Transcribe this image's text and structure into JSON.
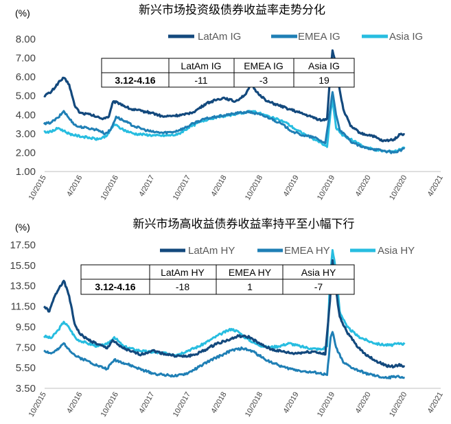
{
  "colors": {
    "latam": "#13497d",
    "emea": "#1f7fb5",
    "asia": "#27bde0",
    "axis": "#bfbfbf",
    "table_border": "#000000"
  },
  "chart_data": [
    {
      "type": "line",
      "title": "新兴市场投资级债券收益率走势分化",
      "unit": "(%)",
      "x_ticks": [
        "10/2015",
        "4/2016",
        "10/2016",
        "4/2017",
        "10/2017",
        "4/2018",
        "10/2018",
        "4/2019",
        "10/2019",
        "4/2020",
        "10/2020",
        "4/2021"
      ],
      "y_ticks": [
        "1.00",
        "2.00",
        "3.00",
        "4.00",
        "5.00",
        "6.00",
        "7.00",
        "8.00"
      ],
      "ylim": [
        1,
        8
      ],
      "legend_position": "top-right",
      "series": [
        {
          "name": "LatAm IG",
          "color_key": "latam",
          "points": [
            [
              0,
              5.0
            ],
            [
              0.2,
              5.2
            ],
            [
              0.4,
              5.7
            ],
            [
              0.55,
              5.95
            ],
            [
              0.7,
              5.6
            ],
            [
              0.85,
              4.5
            ],
            [
              1.0,
              4.1
            ],
            [
              1.3,
              4.0
            ],
            [
              1.6,
              3.8
            ],
            [
              1.8,
              3.9
            ],
            [
              1.92,
              4.7
            ],
            [
              2.1,
              4.6
            ],
            [
              2.4,
              4.3
            ],
            [
              2.7,
              4.2
            ],
            [
              3.0,
              4.1
            ],
            [
              3.3,
              3.9
            ],
            [
              3.6,
              3.95
            ],
            [
              3.9,
              4.0
            ],
            [
              4.2,
              4.2
            ],
            [
              4.5,
              4.6
            ],
            [
              4.8,
              4.8
            ],
            [
              5.0,
              4.9
            ],
            [
              5.3,
              4.7
            ],
            [
              5.6,
              5.1
            ],
            [
              5.75,
              5.6
            ],
            [
              5.9,
              5.2
            ],
            [
              6.2,
              4.7
            ],
            [
              6.5,
              4.5
            ],
            [
              6.8,
              4.3
            ],
            [
              7.1,
              4.1
            ],
            [
              7.4,
              3.9
            ],
            [
              7.7,
              3.7
            ],
            [
              7.85,
              3.8
            ],
            [
              7.95,
              6.5
            ],
            [
              8.0,
              7.4
            ],
            [
              8.1,
              6.6
            ],
            [
              8.2,
              5.3
            ],
            [
              8.3,
              4.3
            ],
            [
              8.5,
              3.4
            ],
            [
              8.8,
              3.0
            ],
            [
              9.1,
              2.9
            ],
            [
              9.4,
              2.6
            ],
            [
              9.7,
              2.7
            ],
            [
              9.9,
              3.0
            ],
            [
              10.0,
              2.95
            ]
          ]
        },
        {
          "name": "EMEA IG",
          "color_key": "emea",
          "points": [
            [
              0,
              3.5
            ],
            [
              0.2,
              3.6
            ],
            [
              0.4,
              3.85
            ],
            [
              0.55,
              4.2
            ],
            [
              0.7,
              3.8
            ],
            [
              0.9,
              3.4
            ],
            [
              1.2,
              3.3
            ],
            [
              1.5,
              3.2
            ],
            [
              1.7,
              3.0
            ],
            [
              1.85,
              3.2
            ],
            [
              2.0,
              3.9
            ],
            [
              2.2,
              3.7
            ],
            [
              2.5,
              3.4
            ],
            [
              2.8,
              3.2
            ],
            [
              3.0,
              3.1
            ],
            [
              3.3,
              3.05
            ],
            [
              3.6,
              3.1
            ],
            [
              3.9,
              3.3
            ],
            [
              4.2,
              3.6
            ],
            [
              4.5,
              3.8
            ],
            [
              4.8,
              3.9
            ],
            [
              5.1,
              4.0
            ],
            [
              5.4,
              4.1
            ],
            [
              5.7,
              4.15
            ],
            [
              6.0,
              4.0
            ],
            [
              6.3,
              3.8
            ],
            [
              6.6,
              3.5
            ],
            [
              6.9,
              3.1
            ],
            [
              7.2,
              2.9
            ],
            [
              7.5,
              2.8
            ],
            [
              7.8,
              2.5
            ],
            [
              7.95,
              4.5
            ],
            [
              8.0,
              5.2
            ],
            [
              8.1,
              4.0
            ],
            [
              8.2,
              3.2
            ],
            [
              8.5,
              2.6
            ],
            [
              8.8,
              2.3
            ],
            [
              9.1,
              2.2
            ],
            [
              9.4,
              2.1
            ],
            [
              9.7,
              2.0
            ],
            [
              10.0,
              2.2
            ]
          ]
        },
        {
          "name": "Asia IG",
          "color_key": "asia",
          "points": [
            [
              0,
              3.1
            ],
            [
              0.2,
              3.1
            ],
            [
              0.4,
              3.3
            ],
            [
              0.55,
              3.15
            ],
            [
              0.7,
              3.0
            ],
            [
              0.9,
              2.9
            ],
            [
              1.2,
              2.8
            ],
            [
              1.5,
              2.7
            ],
            [
              1.75,
              2.9
            ],
            [
              1.95,
              3.5
            ],
            [
              2.2,
              3.2
            ],
            [
              2.5,
              3.0
            ],
            [
              2.8,
              2.95
            ],
            [
              3.1,
              2.9
            ],
            [
              3.4,
              2.9
            ],
            [
              3.7,
              2.95
            ],
            [
              4.0,
              3.3
            ],
            [
              4.3,
              3.6
            ],
            [
              4.6,
              3.8
            ],
            [
              4.9,
              3.9
            ],
            [
              5.2,
              4.0
            ],
            [
              5.5,
              4.1
            ],
            [
              5.8,
              4.2
            ],
            [
              6.1,
              4.0
            ],
            [
              6.4,
              3.8
            ],
            [
              6.7,
              3.6
            ],
            [
              7.0,
              3.2
            ],
            [
              7.3,
              2.9
            ],
            [
              7.6,
              2.6
            ],
            [
              7.85,
              2.3
            ],
            [
              7.95,
              4.2
            ],
            [
              8.0,
              4.8
            ],
            [
              8.1,
              3.3
            ],
            [
              8.3,
              2.9
            ],
            [
              8.6,
              2.6
            ],
            [
              8.9,
              2.3
            ],
            [
              9.2,
              2.15
            ],
            [
              9.5,
              2.05
            ],
            [
              9.8,
              2.1
            ],
            [
              10.0,
              2.3
            ]
          ]
        }
      ],
      "table": {
        "headers": [
          "",
          "LatAm IG",
          "EMEA IG",
          "Asia IG"
        ],
        "row_label": "3.12-4.16",
        "values": [
          "-11",
          "-3",
          "19"
        ]
      }
    },
    {
      "type": "line",
      "title": "新兴市场高收益债券收益率持平至小幅下行",
      "unit": "(%)",
      "x_ticks": [
        "10/2015",
        "4/2016",
        "10/2016",
        "4/2017",
        "10/2017",
        "4/2018",
        "10/2018",
        "4/2019",
        "10/2019",
        "4/2020",
        "10/2020",
        "4/2021"
      ],
      "y_ticks": [
        "3.50",
        "5.50",
        "7.50",
        "9.50",
        "11.50",
        "13.50",
        "15.50",
        "17.50"
      ],
      "ylim": [
        3.5,
        17.5
      ],
      "legend_position": "top-right",
      "series": [
        {
          "name": "LatAm HY",
          "color_key": "latam",
          "points": [
            [
              0,
              11.5
            ],
            [
              0.15,
              11.0
            ],
            [
              0.3,
              12.5
            ],
            [
              0.45,
              13.5
            ],
            [
              0.55,
              14.0
            ],
            [
              0.7,
              12.5
            ],
            [
              0.85,
              9.8
            ],
            [
              1.0,
              8.8
            ],
            [
              1.2,
              8.3
            ],
            [
              1.5,
              7.8
            ],
            [
              1.75,
              7.4
            ],
            [
              1.9,
              8.2
            ],
            [
              2.1,
              7.6
            ],
            [
              2.4,
              7.1
            ],
            [
              2.7,
              6.8
            ],
            [
              3.0,
              7.2
            ],
            [
              3.3,
              6.9
            ],
            [
              3.6,
              6.7
            ],
            [
              3.9,
              6.6
            ],
            [
              4.2,
              6.8
            ],
            [
              4.5,
              7.3
            ],
            [
              4.8,
              7.9
            ],
            [
              5.1,
              8.2
            ],
            [
              5.4,
              8.6
            ],
            [
              5.7,
              8.5
            ],
            [
              6.0,
              7.8
            ],
            [
              6.3,
              7.3
            ],
            [
              6.6,
              7.1
            ],
            [
              6.9,
              6.9
            ],
            [
              7.2,
              7.0
            ],
            [
              7.5,
              7.1
            ],
            [
              7.8,
              6.8
            ],
            [
              7.93,
              12.0
            ],
            [
              8.0,
              16.0
            ],
            [
              8.1,
              13.0
            ],
            [
              8.2,
              10.5
            ],
            [
              8.4,
              9.0
            ],
            [
              8.7,
              7.5
            ],
            [
              9.0,
              6.6
            ],
            [
              9.3,
              6.0
            ],
            [
              9.6,
              5.6
            ],
            [
              9.9,
              5.8
            ],
            [
              10.0,
              5.6
            ]
          ]
        },
        {
          "name": "EMEA HY",
          "color_key": "emea",
          "points": [
            [
              0,
              7.2
            ],
            [
              0.2,
              6.9
            ],
            [
              0.4,
              7.3
            ],
            [
              0.55,
              7.9
            ],
            [
              0.7,
              7.3
            ],
            [
              0.9,
              6.6
            ],
            [
              1.2,
              6.2
            ],
            [
              1.5,
              5.7
            ],
            [
              1.75,
              5.4
            ],
            [
              1.95,
              6.3
            ],
            [
              2.2,
              6.0
            ],
            [
              2.5,
              5.6
            ],
            [
              2.8,
              5.2
            ],
            [
              3.1,
              4.9
            ],
            [
              3.4,
              4.8
            ],
            [
              3.7,
              4.7
            ],
            [
              4.0,
              5.0
            ],
            [
              4.3,
              5.6
            ],
            [
              4.6,
              6.2
            ],
            [
              4.9,
              6.7
            ],
            [
              5.2,
              7.2
            ],
            [
              5.5,
              7.4
            ],
            [
              5.8,
              7.1
            ],
            [
              6.1,
              6.4
            ],
            [
              6.4,
              5.9
            ],
            [
              6.7,
              5.5
            ],
            [
              7.0,
              5.3
            ],
            [
              7.3,
              5.1
            ],
            [
              7.6,
              5.0
            ],
            [
              7.85,
              4.8
            ],
            [
              7.95,
              8.5
            ],
            [
              8.0,
              9.0
            ],
            [
              8.1,
              7.5
            ],
            [
              8.3,
              6.0
            ],
            [
              8.6,
              5.4
            ],
            [
              8.9,
              5.0
            ],
            [
              9.2,
              4.7
            ],
            [
              9.5,
              4.5
            ],
            [
              9.8,
              4.7
            ],
            [
              10.0,
              4.5
            ]
          ]
        },
        {
          "name": "Asia HY",
          "color_key": "asia",
          "points": [
            [
              0,
              8.6
            ],
            [
              0.2,
              8.4
            ],
            [
              0.4,
              9.2
            ],
            [
              0.55,
              10.0
            ],
            [
              0.7,
              9.4
            ],
            [
              0.9,
              8.3
            ],
            [
              1.2,
              7.9
            ],
            [
              1.5,
              7.6
            ],
            [
              1.75,
              7.8
            ],
            [
              1.95,
              8.5
            ],
            [
              2.2,
              7.6
            ],
            [
              2.5,
              7.3
            ],
            [
              2.8,
              7.1
            ],
            [
              3.1,
              7.0
            ],
            [
              3.4,
              6.9
            ],
            [
              3.7,
              6.8
            ],
            [
              4.0,
              7.2
            ],
            [
              4.3,
              7.6
            ],
            [
              4.6,
              8.2
            ],
            [
              4.9,
              8.8
            ],
            [
              5.2,
              9.3
            ],
            [
              5.4,
              9.0
            ],
            [
              5.6,
              8.4
            ],
            [
              5.9,
              7.8
            ],
            [
              6.2,
              7.5
            ],
            [
              6.5,
              7.6
            ],
            [
              6.8,
              7.9
            ],
            [
              7.1,
              7.6
            ],
            [
              7.4,
              7.4
            ],
            [
              7.7,
              7.3
            ],
            [
              7.85,
              7.6
            ],
            [
              7.93,
              14.0
            ],
            [
              8.0,
              17.0
            ],
            [
              8.1,
              15.0
            ],
            [
              8.2,
              11.0
            ],
            [
              8.4,
              9.5
            ],
            [
              8.7,
              8.6
            ],
            [
              9.0,
              8.1
            ],
            [
              9.3,
              7.8
            ],
            [
              9.6,
              7.7
            ],
            [
              9.9,
              7.9
            ],
            [
              10.0,
              7.8
            ]
          ]
        }
      ],
      "table": {
        "headers": [
          "",
          "LatAm HY",
          "EMEA HY",
          "Asia HY"
        ],
        "row_label": "3.12-4.16",
        "values": [
          "-18",
          "1",
          "-7"
        ]
      }
    }
  ]
}
